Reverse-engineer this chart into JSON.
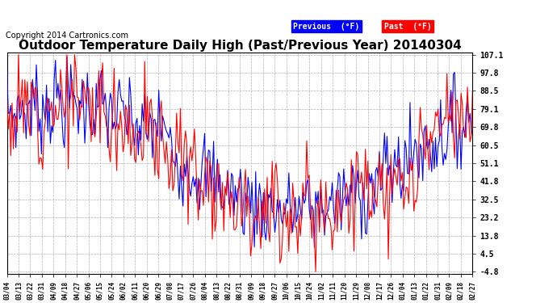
{
  "title": "Outdoor Temperature Daily High (Past/Previous Year) 20140304",
  "copyright": "Copyright 2014 Cartronics.com",
  "yticks": [
    107.1,
    97.8,
    88.5,
    79.1,
    69.8,
    60.5,
    51.1,
    41.8,
    32.5,
    23.2,
    13.8,
    4.5,
    -4.8
  ],
  "ymin": -4.8,
  "ymax": 107.1,
  "legend_labels": [
    "Previous  (°F)",
    "Past  (°F)"
  ],
  "legend_colors": [
    "blue",
    "red"
  ],
  "bg_color": "#ffffff",
  "grid_color": "#b0b0b0",
  "title_fontsize": 11,
  "copyright_fontsize": 7,
  "xtick_labels": [
    "03/04",
    "03/13",
    "03/22",
    "03/31",
    "04/09",
    "04/18",
    "04/27",
    "05/06",
    "05/15",
    "05/24",
    "06/02",
    "06/11",
    "06/20",
    "06/29",
    "07/08",
    "07/17",
    "07/26",
    "08/04",
    "08/13",
    "08/22",
    "08/31",
    "09/09",
    "09/18",
    "09/27",
    "10/06",
    "10/15",
    "10/24",
    "11/02",
    "11/11",
    "11/20",
    "11/29",
    "12/08",
    "12/17",
    "12/26",
    "01/04",
    "01/13",
    "01/22",
    "01/31",
    "02/09",
    "02/18",
    "02/27"
  ]
}
